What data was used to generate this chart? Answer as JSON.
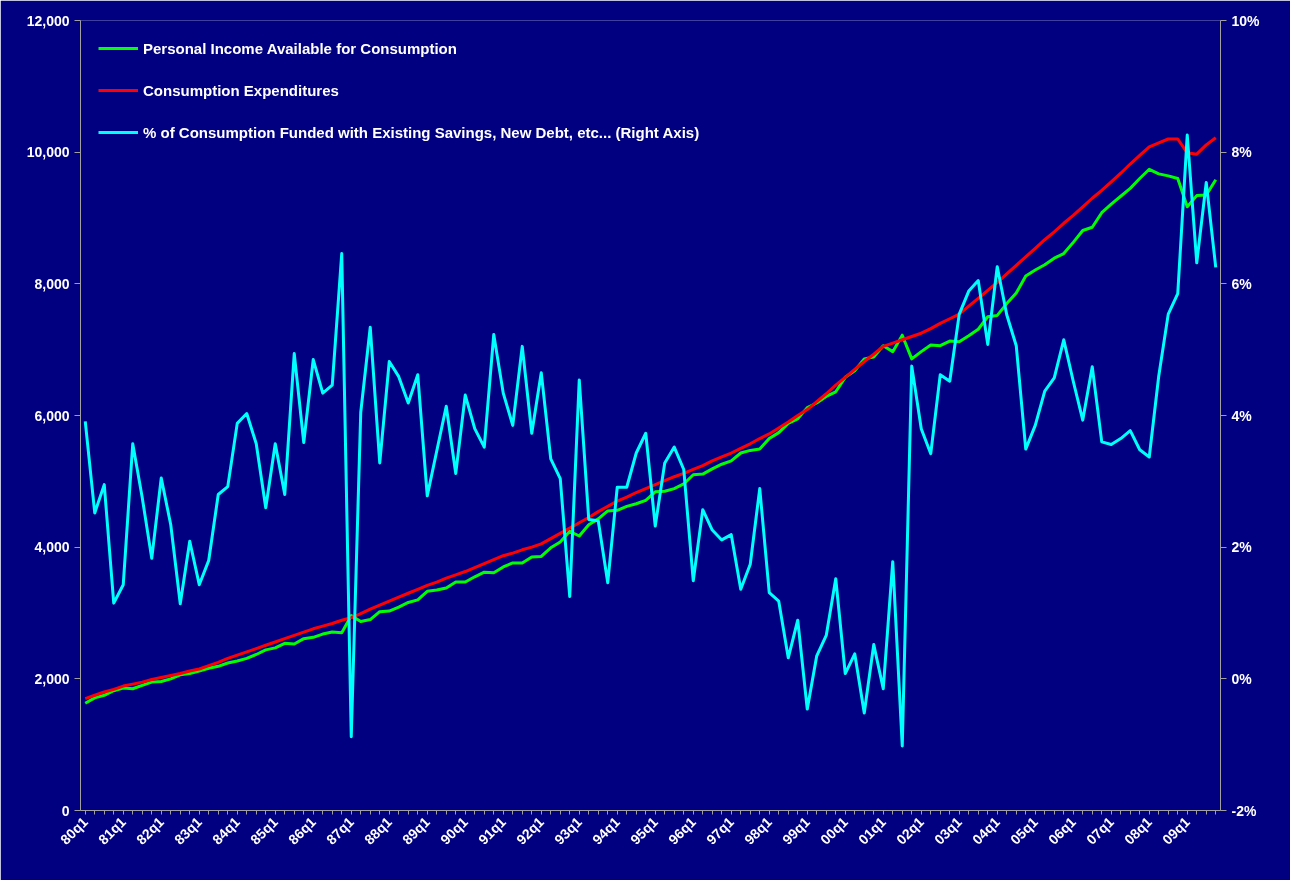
{
  "chart_data": {
    "type": "line",
    "categories": [
      "80q1",
      null,
      null,
      null,
      "81q1",
      null,
      null,
      null,
      "82q1",
      null,
      null,
      null,
      "83q1",
      null,
      null,
      null,
      "84q1",
      null,
      null,
      null,
      "85q1",
      null,
      null,
      null,
      "86q1",
      null,
      null,
      null,
      "87q1",
      null,
      null,
      null,
      "88q1",
      null,
      null,
      null,
      "89q1",
      null,
      null,
      null,
      "90q1",
      null,
      null,
      null,
      "91q1",
      null,
      null,
      null,
      "92q1",
      null,
      null,
      null,
      "93q1",
      null,
      null,
      null,
      "94q1",
      null,
      null,
      null,
      "95q1",
      null,
      null,
      null,
      "96q1",
      null,
      null,
      null,
      "97q1",
      null,
      null,
      null,
      "98q1",
      null,
      null,
      null,
      "99q1",
      null,
      null,
      null,
      "00q1",
      null,
      null,
      null,
      "01q1",
      null,
      null,
      null,
      "02q1",
      null,
      null,
      null,
      "03q1",
      null,
      null,
      null,
      "04q1",
      null,
      null,
      null,
      "05q1",
      null,
      null,
      null,
      "06q1",
      null,
      null,
      null,
      "07q1",
      null,
      null,
      null,
      "08q1",
      null,
      null,
      null,
      "09q1",
      null,
      null,
      null
    ],
    "ylim": [
      0,
      12000
    ],
    "yticks": [
      0,
      {
        "value": 2000,
        "label": "2,000"
      },
      {
        "value": 4000,
        "label": "4,000"
      },
      {
        "value": 6000,
        "label": "6,000"
      },
      {
        "value": 8000,
        "label": "8,000"
      },
      {
        "value": 10000,
        "label": "10,000"
      },
      {
        "value": 12000,
        "label": "12,000"
      }
    ],
    "y2lim": [
      -2,
      10
    ],
    "y2ticks": [
      {
        "value": -2,
        "label": "-2%"
      },
      {
        "value": 0,
        "label": "0%"
      },
      {
        "value": 2,
        "label": "2%"
      },
      {
        "value": 4,
        "label": "4%"
      },
      {
        "value": 6,
        "label": "6%"
      },
      {
        "value": 8,
        "label": "8%"
      },
      {
        "value": 10,
        "label": "10%"
      }
    ],
    "legend": "top left",
    "series": [
      {
        "name": "Personal Income Available for Consumption",
        "color": "#00ff00",
        "values": [
          1630,
          1710,
          1750,
          1820,
          1860,
          1850,
          1900,
          1950,
          1960,
          2000,
          2060,
          2080,
          2120,
          2160,
          2190,
          2240,
          2270,
          2310,
          2370,
          2440,
          2470,
          2540,
          2530,
          2610,
          2630,
          2680,
          2710,
          2700,
          2960,
          2870,
          2900,
          3020,
          3030,
          3090,
          3160,
          3200,
          3330,
          3350,
          3380,
          3470,
          3470,
          3550,
          3620,
          3610,
          3700,
          3760,
          3760,
          3850,
          3860,
          3990,
          4080,
          4240,
          4170,
          4340,
          4430,
          4550,
          4560,
          4620,
          4660,
          4710,
          4840,
          4850,
          4890,
          4960,
          5100,
          5110,
          5190,
          5260,
          5310,
          5430,
          5470,
          5490,
          5650,
          5740,
          5880,
          5950,
          6120,
          6190,
          6290,
          6360,
          6580,
          6680,
          6860,
          6890,
          7060,
          6970,
          7220,
          6860,
          6970,
          7070,
          7060,
          7130,
          7120,
          7210,
          7310,
          7500,
          7520,
          7700,
          7860,
          8120,
          8210,
          8290,
          8390,
          8460,
          8630,
          8810,
          8860,
          9080,
          9210,
          9330,
          9450,
          9600,
          9740,
          9670,
          9640,
          9600,
          9170,
          9340,
          9350,
          9580
        ]
      },
      {
        "name": "Consumption Expenditures",
        "color": "#ff0000",
        "values": [
          1700,
          1750,
          1800,
          1840,
          1890,
          1920,
          1950,
          1990,
          2020,
          2050,
          2080,
          2120,
          2150,
          2200,
          2250,
          2310,
          2360,
          2410,
          2460,
          2510,
          2560,
          2610,
          2660,
          2710,
          2760,
          2800,
          2840,
          2890,
          2930,
          2990,
          3060,
          3120,
          3180,
          3240,
          3300,
          3360,
          3420,
          3470,
          3530,
          3580,
          3630,
          3690,
          3750,
          3810,
          3870,
          3910,
          3960,
          4000,
          4050,
          4130,
          4210,
          4290,
          4370,
          4450,
          4540,
          4620,
          4700,
          4760,
          4830,
          4890,
          4950,
          5010,
          5070,
          5120,
          5180,
          5240,
          5310,
          5370,
          5430,
          5500,
          5570,
          5650,
          5720,
          5810,
          5900,
          6000,
          6090,
          6210,
          6330,
          6460,
          6580,
          6700,
          6820,
          6930,
          7050,
          7100,
          7150,
          7200,
          7250,
          7320,
          7400,
          7470,
          7540,
          7660,
          7780,
          7900,
          8020,
          8150,
          8280,
          8410,
          8540,
          8670,
          8790,
          8920,
          9040,
          9170,
          9300,
          9420,
          9550,
          9680,
          9820,
          9950,
          10080,
          10140,
          10200,
          10200,
          9990,
          9970,
          10110,
          10220
        ]
      },
      {
        "name": "% of Consumption Funded with Existing Savings, New Debt, etc... (Right Axis)",
        "color": "#00ffff",
        "axis": "y2",
        "values": [
          3.91,
          2.52,
          2.95,
          1.15,
          1.43,
          3.57,
          2.75,
          1.83,
          3.05,
          2.34,
          1.14,
          2.09,
          1.43,
          1.8,
          2.8,
          2.92,
          3.88,
          4.03,
          3.57,
          2.6,
          3.57,
          2.8,
          4.94,
          3.59,
          4.85,
          4.34,
          4.46,
          6.46,
          -0.88,
          4.05,
          5.34,
          3.28,
          4.82,
          4.59,
          4.19,
          4.62,
          2.78,
          3.46,
          4.14,
          3.12,
          4.31,
          3.8,
          3.52,
          5.23,
          4.34,
          3.85,
          5.05,
          3.73,
          4.65,
          3.34,
          3.04,
          1.25,
          4.54,
          2.42,
          2.4,
          1.46,
          2.91,
          2.91,
          3.43,
          3.73,
          2.32,
          3.28,
          3.52,
          3.18,
          1.49,
          2.57,
          2.26,
          2.11,
          2.19,
          1.36,
          1.74,
          2.89,
          1.31,
          1.18,
          0.32,
          0.89,
          -0.46,
          0.35,
          0.66,
          1.52,
          0.08,
          0.38,
          -0.52,
          0.52,
          -0.15,
          1.78,
          -1.02,
          4.75,
          3.8,
          3.42,
          4.62,
          4.52,
          5.54,
          5.89,
          6.05,
          5.08,
          6.26,
          5.53,
          5.06,
          3.49,
          3.85,
          4.37,
          4.57,
          5.15,
          4.52,
          3.93,
          4.74,
          3.6,
          3.56,
          3.65,
          3.77,
          3.48,
          3.37,
          4.6,
          5.54,
          5.85,
          8.26,
          6.32,
          7.54,
          6.25
        ]
      }
    ]
  }
}
